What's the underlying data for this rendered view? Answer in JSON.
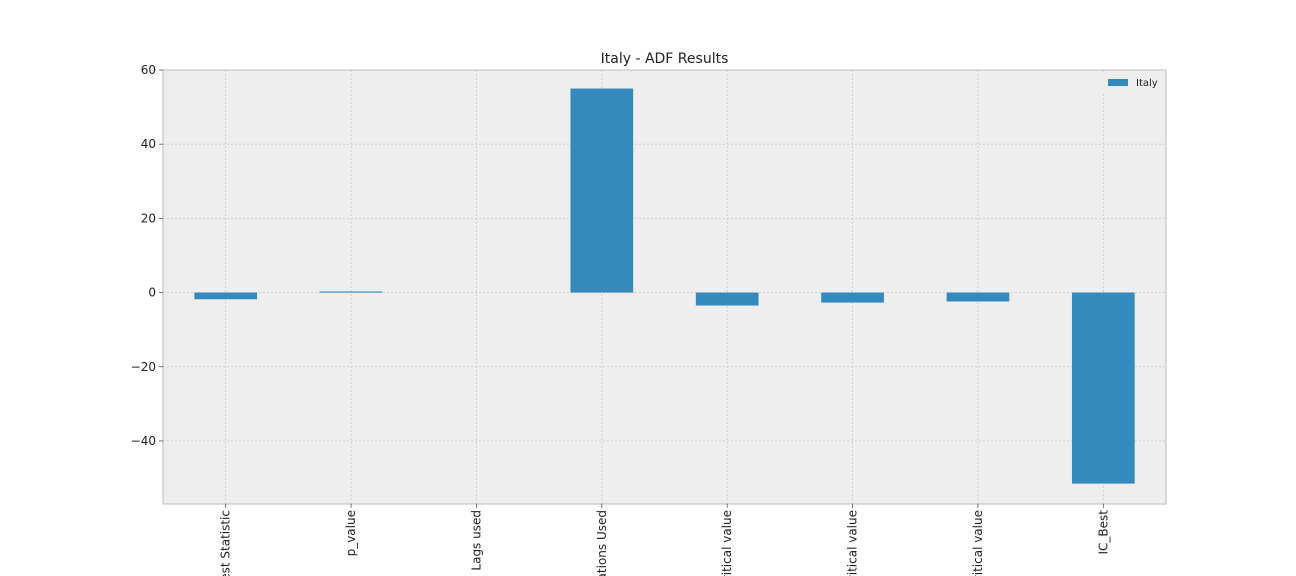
{
  "chart_data": {
    "type": "bar",
    "title": "Italy - ADF Results",
    "xlabel": "",
    "ylabel": "",
    "categories": [
      "Test Statistic",
      "p_value",
      "Lags used",
      "Observations Used",
      "Critical value",
      "Critical value",
      "Critical value",
      "IC_Best"
    ],
    "visible_category_labels": [
      "est Statistic",
      "p_value",
      "Lags used",
      "ations Used",
      "ritical value",
      "ritical value",
      "ritical value",
      "IC_Best"
    ],
    "series": [
      {
        "name": "Italy",
        "values": [
          -1.8,
          0.3,
          0.0,
          55.0,
          -3.5,
          -2.7,
          -2.4,
          -51.5
        ]
      }
    ],
    "ylim": [
      -57,
      60
    ],
    "yticks": [
      60,
      40,
      20,
      0,
      -20,
      -40
    ],
    "ytick_labels": [
      "60",
      "40",
      "20",
      "0",
      "−20",
      "−40"
    ],
    "grid": true,
    "legend_placement": "top-right",
    "colors": {
      "bar": "#348ABD",
      "plot_bg": "#EEEEEE",
      "frame": "#BCBCBC"
    }
  }
}
